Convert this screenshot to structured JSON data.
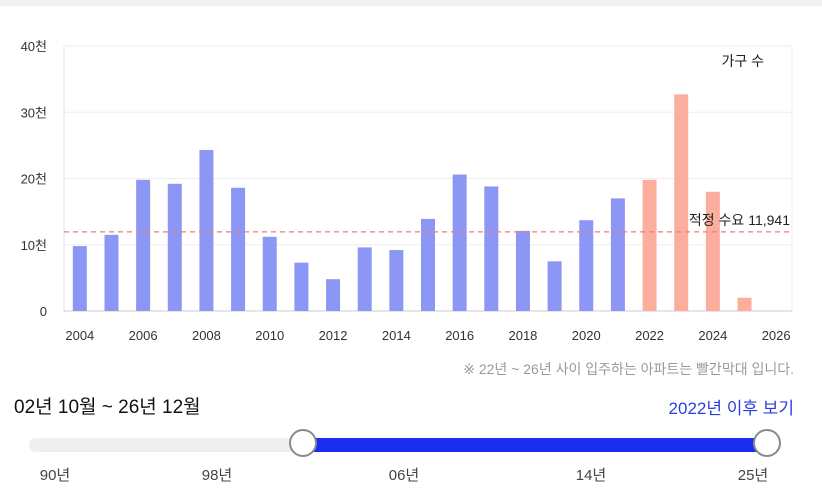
{
  "chart_data": {
    "type": "bar",
    "legend_label": "가구 수",
    "x_tick_labels": [
      "2004",
      "2006",
      "2008",
      "2010",
      "2012",
      "2014",
      "2016",
      "2018",
      "2020",
      "2022",
      "2024",
      "2026"
    ],
    "y_tick_labels": [
      "0",
      "10천",
      "20천",
      "30천",
      "40천"
    ],
    "ylim": [
      0,
      40000
    ],
    "xlim": [
      2003.5,
      2026.5
    ],
    "grid": true,
    "series": [
      {
        "color": "#8c97f5",
        "x": [
          2004,
          2005,
          2006,
          2007,
          2008,
          2009,
          2010,
          2011,
          2012,
          2013,
          2014,
          2015,
          2016,
          2017,
          2018,
          2019,
          2020,
          2021
        ],
        "values": [
          9800,
          11500,
          19800,
          19200,
          24300,
          18600,
          11200,
          7300,
          4800,
          9600,
          9200,
          13900,
          20600,
          18800,
          12100,
          7500,
          13700,
          17000
        ]
      },
      {
        "color": "#fbae9d",
        "x": [
          2022,
          2023,
          2024,
          2025
        ],
        "values": [
          19800,
          32700,
          18000,
          2000
        ]
      }
    ],
    "reference_line": {
      "value": 11941,
      "label": "적정 수요 11,941",
      "color": "#ee7d7d"
    }
  },
  "note": "※ 22년 ~ 26년 사이 입주하는 아파트는 빨간막대 입니다.",
  "range_label": "02년 10월 ~ 26년 12월",
  "after_link": "2022년 이후 보기",
  "slider": {
    "tick_labels": [
      "90년",
      "98년",
      "06년",
      "14년",
      "25년"
    ],
    "selected_start_fraction": 0.371,
    "selected_end_fraction": 1.0
  }
}
